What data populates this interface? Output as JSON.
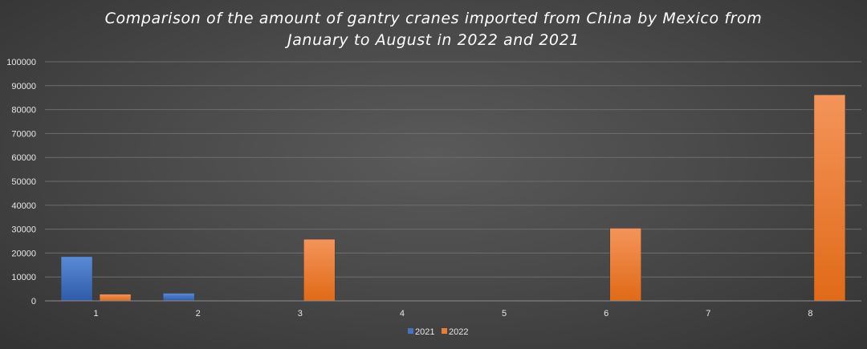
{
  "chart_data": {
    "type": "bar",
    "title_lines": [
      "Comparison of the amount of gantry cranes imported from China by Mexico from",
      "January to August in 2022 and 2021"
    ],
    "categories": [
      "1",
      "2",
      "3",
      "4",
      "5",
      "6",
      "7",
      "8"
    ],
    "series": [
      {
        "name": "2021",
        "color": "#4472c4",
        "values": [
          18500,
          3200,
          0,
          0,
          0,
          0,
          0,
          0
        ]
      },
      {
        "name": "2022",
        "color": "#ed7d31",
        "values": [
          2800,
          0,
          25800,
          0,
          0,
          30400,
          0,
          86200
        ]
      }
    ],
    "ylim": [
      0,
      100000
    ],
    "yticks": [
      "0",
      "10000",
      "20000",
      "30000",
      "40000",
      "50000",
      "60000",
      "70000",
      "80000",
      "90000",
      "100000"
    ],
    "grid": true,
    "legend_position": "bottom"
  }
}
